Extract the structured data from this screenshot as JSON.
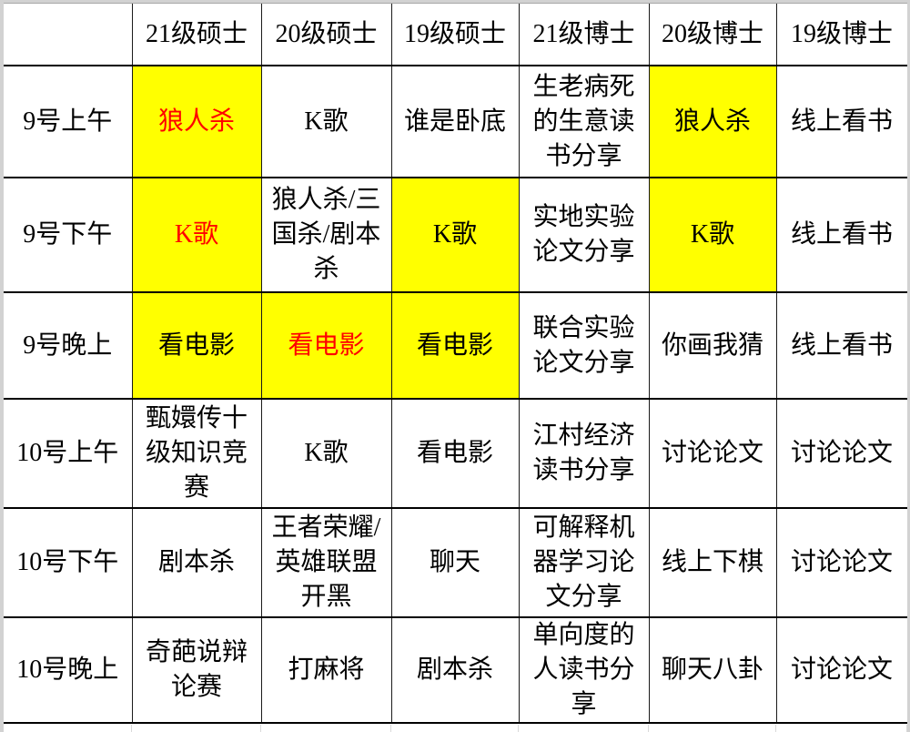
{
  "sheet": {
    "columns": [
      {
        "label": ""
      },
      {
        "label": "21级硕士"
      },
      {
        "label": "20级硕士"
      },
      {
        "label": "19级硕士"
      },
      {
        "label": "21级博士"
      },
      {
        "label": "20级博士"
      },
      {
        "label": "19级博士"
      }
    ],
    "rows": [
      {
        "label": "9号上午",
        "cells": [
          {
            "text": "狼人杀",
            "highlight": true,
            "text_color": "red"
          },
          {
            "text": "K歌"
          },
          {
            "text": "谁是卧底"
          },
          {
            "text": "生老病死的生意读书分享"
          },
          {
            "text": "狼人杀",
            "highlight": true
          },
          {
            "text": "线上看书"
          }
        ]
      },
      {
        "label": "9号下午",
        "cells": [
          {
            "text": "K歌",
            "highlight": true,
            "text_color": "red"
          },
          {
            "text": "狼人杀/三国杀/剧本杀"
          },
          {
            "text": "K歌",
            "highlight": true
          },
          {
            "text": "实地实验论文分享"
          },
          {
            "text": "K歌",
            "highlight": true
          },
          {
            "text": "线上看书"
          }
        ]
      },
      {
        "label": "9号晚上",
        "cells": [
          {
            "text": "看电影",
            "highlight": true
          },
          {
            "text": "看电影",
            "highlight": true,
            "text_color": "red"
          },
          {
            "text": "看电影",
            "highlight": true
          },
          {
            "text": "联合实验论文分享"
          },
          {
            "text": "你画我猜"
          },
          {
            "text": "线上看书"
          }
        ]
      },
      {
        "label": "10号上午",
        "cells": [
          {
            "text": "甄嬛传十级知识竞赛"
          },
          {
            "text": "K歌"
          },
          {
            "text": "看电影"
          },
          {
            "text": "江村经济读书分享"
          },
          {
            "text": "讨论论文"
          },
          {
            "text": "讨论论文"
          }
        ]
      },
      {
        "label": "10号下午",
        "cells": [
          {
            "text": "剧本杀"
          },
          {
            "text": "王者荣耀/英雄联盟开黑"
          },
          {
            "text": "聊天"
          },
          {
            "text": "可解释机器学习论文分享"
          },
          {
            "text": "线上下棋"
          },
          {
            "text": "讨论论文"
          }
        ]
      },
      {
        "label": "10号晚上",
        "cells": [
          {
            "text": "奇葩说辩论赛"
          },
          {
            "text": "打麻将"
          },
          {
            "text": "剧本杀"
          },
          {
            "text": "单向度的人读书分享"
          },
          {
            "text": "聊天八卦"
          },
          {
            "text": "讨论论文"
          }
        ]
      }
    ],
    "colors": {
      "highlight_bg": "#ffff00",
      "alert_text": "#ff0000",
      "default_text": "#000000",
      "grid_line": "#000000",
      "page_edge": "#d2d2d2",
      "faint_grid_line": "#d9d9d9"
    }
  }
}
